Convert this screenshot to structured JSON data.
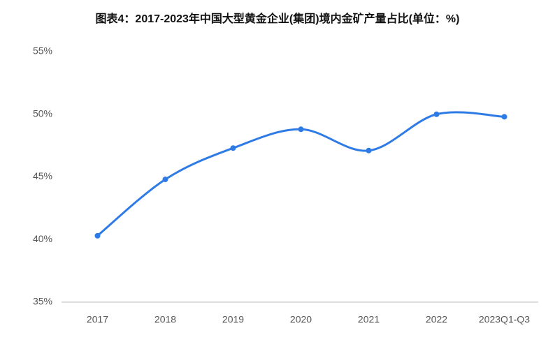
{
  "chart_data": {
    "type": "line",
    "title": "图表4：2017-2023年中国大型黄金企业(集团)境内金矿产量占比(单位：%)",
    "categories": [
      "2017",
      "2018",
      "2019",
      "2020",
      "2021",
      "2022",
      "2023Q1-Q3"
    ],
    "values": [
      40.3,
      44.8,
      47.3,
      48.8,
      47.1,
      50.0,
      49.8
    ],
    "color": "#2f7be6",
    "ylim": [
      35,
      55
    ],
    "yticks": [
      {
        "value": 35,
        "label": "35%"
      },
      {
        "value": 40,
        "label": "40%"
      },
      {
        "value": 45,
        "label": "45%"
      },
      {
        "value": 50,
        "label": "50%"
      },
      {
        "value": 55,
        "label": "55%"
      }
    ],
    "grid": false
  }
}
